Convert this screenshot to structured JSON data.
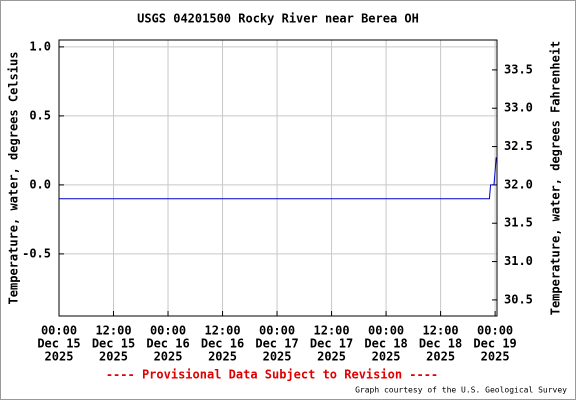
{
  "chart_data": {
    "type": "line",
    "title": "USGS 04201500 Rocky River near Berea OH",
    "y_label": "Temperature, water, degrees Celsius",
    "y2_label": "Temperature, water, degrees Fahrenheit",
    "x": [
      "2025-12-15T00:00",
      "2025-12-18T22:45",
      "2025-12-18T23:00",
      "2025-12-18T23:45",
      "2025-12-19T00:00",
      "2025-12-19T00:15"
    ],
    "series": [
      {
        "name": "Temperature, water, degrees Celsius",
        "color": "#0000cc",
        "values": [
          -0.1,
          -0.1,
          0.0,
          0.0,
          0.1,
          0.2
        ]
      }
    ],
    "xlim": [
      "2025-12-15T00:00",
      "2025-12-19T00:25"
    ],
    "xticks": [
      {
        "value": "2025-12-15T00:00",
        "label": [
          "00:00",
          "Dec 15",
          "2025"
        ]
      },
      {
        "value": "2025-12-15T12:00",
        "label": [
          "12:00",
          "Dec 15",
          "2025"
        ]
      },
      {
        "value": "2025-12-16T00:00",
        "label": [
          "00:00",
          "Dec 16",
          "2025"
        ]
      },
      {
        "value": "2025-12-16T12:00",
        "label": [
          "12:00",
          "Dec 16",
          "2025"
        ]
      },
      {
        "value": "2025-12-17T00:00",
        "label": [
          "00:00",
          "Dec 17",
          "2025"
        ]
      },
      {
        "value": "2025-12-17T12:00",
        "label": [
          "12:00",
          "Dec 17",
          "2025"
        ]
      },
      {
        "value": "2025-12-18T00:00",
        "label": [
          "00:00",
          "Dec 18",
          "2025"
        ]
      },
      {
        "value": "2025-12-18T12:00",
        "label": [
          "12:00",
          "Dec 18",
          "2025"
        ]
      },
      {
        "value": "2025-12-19T00:00",
        "label": [
          "00:00",
          "Dec 19",
          "2025"
        ]
      }
    ],
    "ylim": [
      -0.95,
      1.05
    ],
    "yticks": [
      {
        "value": 1.0,
        "label": "1.0"
      },
      0.5,
      {
        "value": 0.0,
        "label": "0.0"
      },
      -0.5
    ],
    "y2lim": [
      30.29,
      33.89
    ],
    "y2ticks": [
      33.5,
      {
        "value": 33.0,
        "label": "33.0"
      },
      32.5,
      {
        "value": 32.0,
        "label": "32.0"
      },
      31.5,
      {
        "value": 31.0,
        "label": "31.0"
      },
      30.5
    ],
    "grid": true,
    "footer": "---- Provisional Data Subject to Revision ----",
    "credit": "Graph courtesy of the U.S. Geological Survey"
  }
}
